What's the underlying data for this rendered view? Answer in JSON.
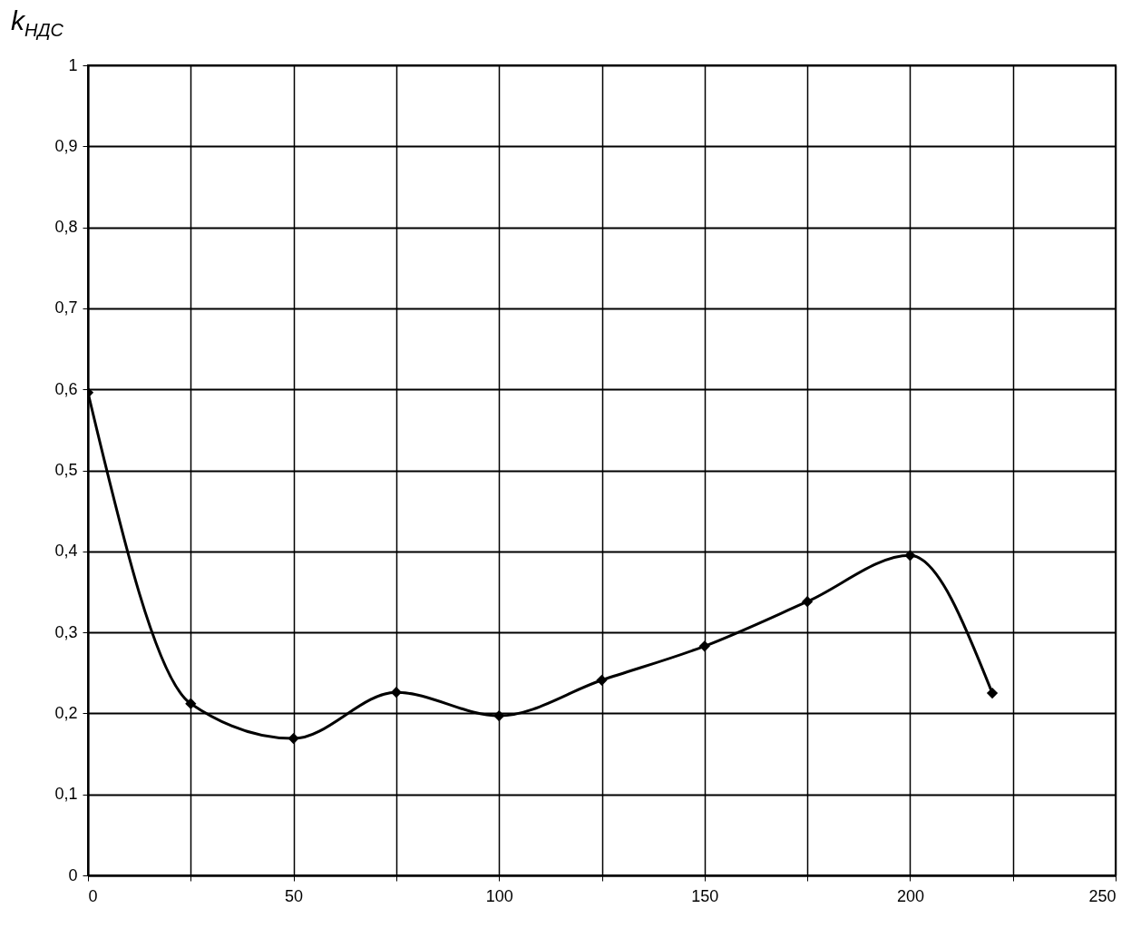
{
  "chart_data": {
    "type": "line",
    "ylabel": "k$_{НДС}$",
    "x": [
      0,
      25,
      50,
      75,
      100,
      125,
      150,
      175,
      200,
      220
    ],
    "series": [
      {
        "color": "#000000",
        "values": [
          0.596,
          0.212,
          0.169,
          0.226,
          0.197,
          0.241,
          0.283,
          0.338,
          0.395,
          0.225
        ]
      }
    ],
    "xlim": [
      0,
      250
    ],
    "xticks": [
      0,
      {
        "value": 25,
        "label": null
      },
      50,
      {
        "value": 75,
        "label": null
      },
      100,
      {
        "value": 125,
        "label": null
      },
      150,
      {
        "value": 175,
        "label": null
      },
      200,
      {
        "value": 225,
        "label": null
      },
      250
    ],
    "ylim": [
      0,
      1
    ],
    "yticks": [
      0,
      {
        "value": 0.1,
        "label": "0,1"
      },
      {
        "value": 0.2,
        "label": "0,2"
      },
      {
        "value": 0.3,
        "label": "0,3"
      },
      {
        "value": 0.4,
        "label": "0,4"
      },
      {
        "value": 0.5,
        "label": "0,5"
      },
      {
        "value": 0.6,
        "label": "0,6"
      },
      {
        "value": 0.7,
        "label": "0,7"
      },
      {
        "value": 0.8,
        "label": "0,8"
      },
      {
        "value": 0.9,
        "label": "0,9"
      },
      1
    ],
    "grid": true,
    "marker": "diamond",
    "line_style": "solid"
  }
}
